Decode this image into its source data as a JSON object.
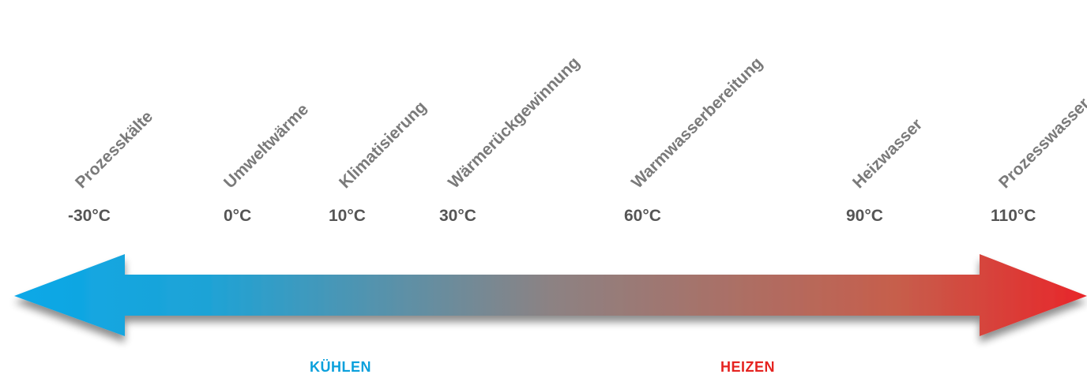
{
  "categories": [
    {
      "label": "Prozesskälte",
      "temp": "-30°C"
    },
    {
      "label": "Umweltwärme",
      "temp": "0°C"
    },
    {
      "label": "Klimatisierung",
      "temp": "10°C"
    },
    {
      "label": "Wärmerückgewinnung",
      "temp": "30°C"
    },
    {
      "label": "Warmwasserbereitung",
      "temp": "60°C"
    },
    {
      "label": "Heizwasser",
      "temp": "90°C"
    },
    {
      "label": "Prozesswasser",
      "temp": "110°C"
    }
  ],
  "directions": {
    "cooling": {
      "label": "KÜHLEN",
      "color": "#0aa0dc"
    },
    "heating": {
      "label": "HEIZEN",
      "color": "#e52320"
    }
  },
  "arrow_colors": {
    "cold": "#0aa8e8",
    "mid": "#8c8283",
    "hot": "#e8262a"
  }
}
